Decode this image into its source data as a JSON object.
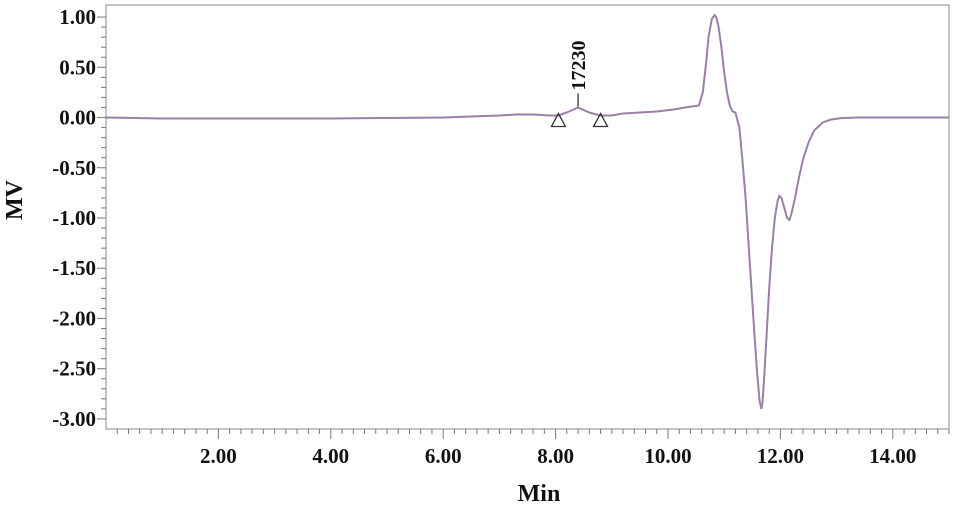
{
  "chart_data": {
    "type": "line",
    "title": "",
    "xlabel": "Min",
    "ylabel": "MV",
    "xlim": [
      0.0,
      15.0
    ],
    "ylim": [
      -3.1,
      1.12
    ],
    "x_ticks": [
      2,
      4,
      6,
      8,
      10,
      12,
      14
    ],
    "x_tick_labels": [
      "2.00",
      "4.00",
      "6.00",
      "8.00",
      "10.00",
      "12.00",
      "14.00"
    ],
    "y_ticks": [
      1,
      0.5,
      0,
      -0.5,
      -1,
      -1.5,
      -2,
      -2.5,
      -3
    ],
    "y_tick_labels": [
      "1.00",
      "0.50",
      "0.00",
      "-0.50",
      "-1.00",
      "-1.50",
      "-2.00",
      "-2.50",
      "-3.00"
    ],
    "grid": false,
    "series_color": "#9b7fa6",
    "series": [
      {
        "x": [
          0.0,
          1.0,
          2.0,
          3.0,
          4.0,
          5.0,
          6.0,
          6.5,
          7.0,
          7.3,
          7.6,
          7.9,
          8.05,
          8.2,
          8.4,
          8.6,
          8.8,
          9.0,
          9.2,
          9.5,
          9.8,
          10.1,
          10.3,
          10.55,
          10.62,
          10.68,
          10.72,
          10.78,
          10.83,
          10.86,
          10.9,
          10.95,
          11.0,
          11.05,
          11.1,
          11.15,
          11.2,
          11.27,
          11.32,
          11.38,
          11.45,
          11.52,
          11.58,
          11.63,
          11.66,
          11.68,
          11.71,
          11.75,
          11.8,
          11.85,
          11.9,
          11.95,
          11.98,
          12.02,
          12.07,
          12.12,
          12.16,
          12.2,
          12.26,
          12.33,
          12.4,
          12.5,
          12.6,
          12.75,
          12.9,
          13.1,
          13.4,
          13.8,
          14.2,
          14.6,
          15.0
        ],
        "y": [
          0.0,
          -0.01,
          -0.01,
          -0.01,
          -0.01,
          -0.005,
          0.0,
          0.01,
          0.02,
          0.03,
          0.03,
          0.02,
          0.02,
          0.05,
          0.1,
          0.05,
          0.02,
          0.02,
          0.04,
          0.05,
          0.06,
          0.08,
          0.1,
          0.12,
          0.25,
          0.55,
          0.8,
          0.98,
          1.02,
          1.0,
          0.9,
          0.7,
          0.45,
          0.25,
          0.12,
          0.06,
          0.05,
          -0.1,
          -0.4,
          -0.8,
          -1.4,
          -2.0,
          -2.5,
          -2.82,
          -2.9,
          -2.85,
          -2.6,
          -2.2,
          -1.7,
          -1.3,
          -1.0,
          -0.83,
          -0.78,
          -0.8,
          -0.9,
          -1.0,
          -1.02,
          -0.95,
          -0.8,
          -0.6,
          -0.42,
          -0.25,
          -0.13,
          -0.05,
          -0.02,
          -0.005,
          0.0,
          0.0,
          0.0,
          0.0,
          0.0
        ]
      }
    ],
    "annotations": [
      {
        "text": "17230",
        "x": 8.4,
        "y": 0.1
      }
    ],
    "peak_markers": [
      {
        "x": 8.05,
        "y": 0.02
      },
      {
        "x": 8.8,
        "y": 0.02
      }
    ]
  }
}
